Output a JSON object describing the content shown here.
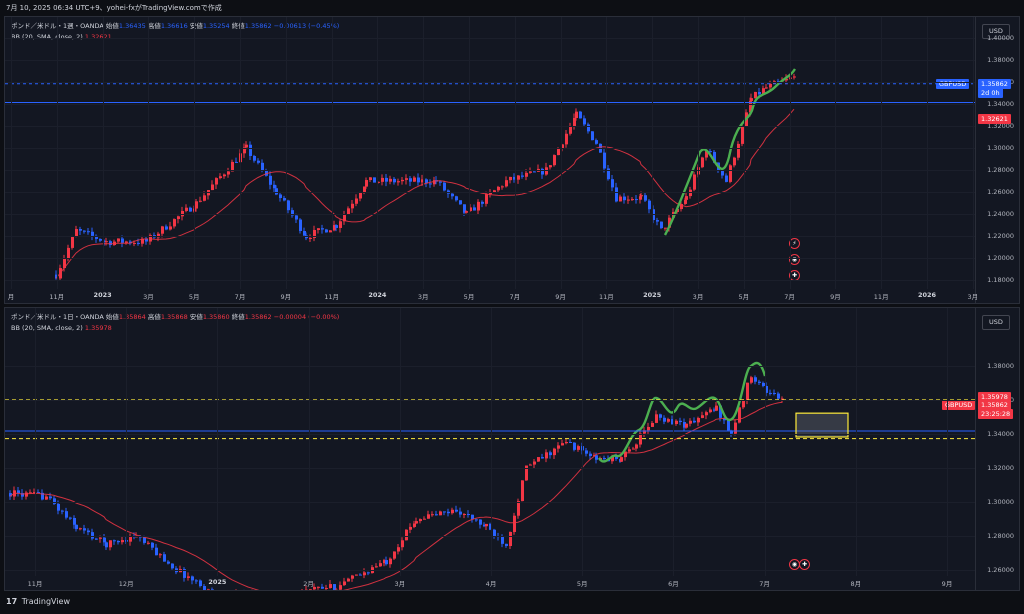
{
  "header": {
    "text": "7月 10, 2025 06:34 UTC+9、yohei-fxがTradingView.comで作成"
  },
  "footer": {
    "brand": "TradingView",
    "logo": "17"
  },
  "colors": {
    "up": "#089981",
    "down": "#f23645",
    "blue": "#2962ff",
    "green": "#4caf50",
    "yellow": "#ffeb3b"
  },
  "pane1": {
    "currency": "USD",
    "title": "ポンド／米ドル・1週・OANDA",
    "o_label": "始値",
    "o": "1.36435",
    "h_label": "高値",
    "h": "1.36616",
    "l_label": "安値",
    "l": "1.35254",
    "c_label": "終値",
    "c": "1.35862",
    "chg": "−0.00613 (−0.45%)",
    "bb": "BB (20, SMA, close, 2)",
    "bb_val": "1.32621",
    "prices": [
      "1.40000",
      "1.38000",
      "1.36000",
      "1.34000",
      "1.32000",
      "1.30000",
      "1.28000",
      "1.26000",
      "1.24000",
      "1.22000",
      "1.20000",
      "1.18000"
    ],
    "dates": [
      "月",
      "11月",
      "2023",
      "3月",
      "5月",
      "7月",
      "9月",
      "11月",
      "2024",
      "3月",
      "5月",
      "7月",
      "9月",
      "11月",
      "2025",
      "3月",
      "5月",
      "7月",
      "9月",
      "11月",
      "2026",
      "3月"
    ],
    "symbol": "GBPUSD",
    "last": "1.35862",
    "countdown": "2d 0h",
    "bb_tag": "1.32621"
  },
  "pane2": {
    "currency": "USD",
    "title": "ポンド／米ドル・1日・OANDA",
    "o_label": "始値",
    "o": "1.35864",
    "h_label": "高値",
    "h": "1.35868",
    "l_label": "安値",
    "l": "1.35860",
    "c_label": "終値",
    "c": "1.35862",
    "chg": "−0.00004 (−0.00%)",
    "bb": "BB (20, SMA, close, 2)",
    "bb_val": "1.35978",
    "prices": [
      "1.38000",
      "1.36000",
      "1.34000",
      "1.32000",
      "1.30000",
      "1.28000",
      "1.26000"
    ],
    "dates": [
      "11月",
      "12月",
      "2025",
      "2月",
      "3月",
      "4月",
      "5月",
      "6月",
      "7月",
      "8月",
      "9月"
    ],
    "symbol": "GBPUSD",
    "last": "1.35862",
    "countdown": "23:25:28",
    "bb_tag": "1.35978"
  }
}
